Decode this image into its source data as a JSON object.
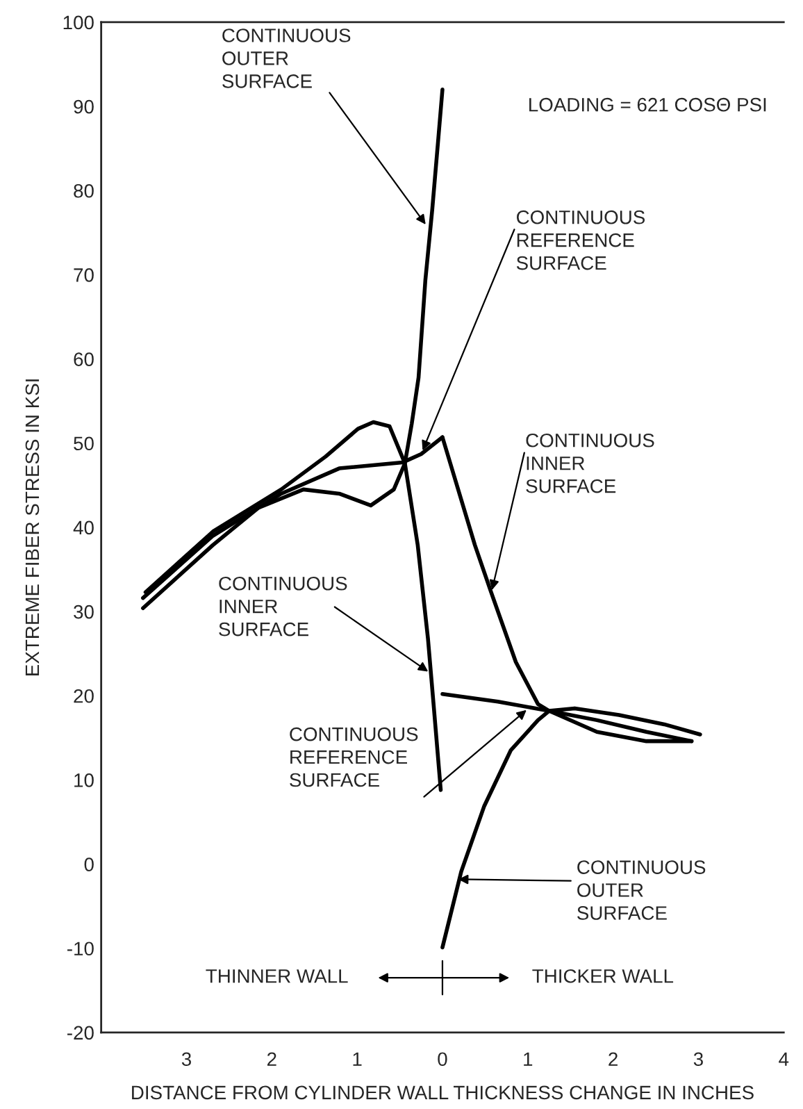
{
  "chart_data": {
    "type": "line",
    "xlabel": "DISTANCE FROM CYLINDER WALL THICKNESS CHANGE IN INCHES",
    "ylabel": "EXTREME FIBER STRESS IN KSI",
    "xlim": [
      -4,
      4
    ],
    "xticks": [
      {
        "value": -3,
        "label": "3"
      },
      {
        "value": -2,
        "label": "2"
      },
      {
        "value": -1,
        "label": "1"
      },
      0,
      1,
      2,
      3,
      4
    ],
    "ylim": [
      -20,
      100
    ],
    "yticks": [
      -20,
      -10,
      0,
      10,
      20,
      30,
      40,
      50,
      60,
      70,
      80,
      90,
      100
    ],
    "series": [
      {
        "color": "#000000",
        "x": [
          -3.48,
          -2.69,
          -1.89,
          -1.37,
          -0.99,
          -0.81,
          -0.62,
          -0.44,
          -0.29,
          -0.17,
          -0.1,
          -0.02
        ],
        "values": [
          32.3,
          39.5,
          44.5,
          48.4,
          51.7,
          52.5,
          52.0,
          47.6,
          37.9,
          26.8,
          18.5,
          8.8
        ]
      },
      {
        "color": "#000000",
        "x": [
          -3.51,
          -2.69,
          -1.89,
          -1.21,
          -0.47,
          -0.25,
          0
        ],
        "values": [
          31.6,
          39.0,
          44.0,
          47.0,
          47.7,
          48.7,
          50.7
        ]
      },
      {
        "color": "#000000",
        "x": [
          -3.51,
          -2.69,
          -2.16,
          -1.63,
          -1.21,
          -0.84,
          -0.57,
          -0.44,
          -0.36,
          -0.28,
          -0.2,
          -0.12,
          -0.05,
          0
        ],
        "values": [
          30.4,
          37.9,
          42.3,
          44.5,
          44.0,
          42.6,
          44.5,
          47.6,
          52.3,
          57.8,
          69.4,
          77.7,
          86.0,
          92
        ]
      },
      {
        "color": "#000000",
        "x": [
          0,
          0.38,
          0.57,
          0.86,
          1.12,
          1.25,
          1.81,
          2.39,
          2.92
        ],
        "values": [
          50.7,
          37.9,
          32.3,
          24.0,
          19.0,
          18.2,
          15.7,
          14.6,
          14.6
        ]
      },
      {
        "color": "#000000",
        "x": [
          0,
          0.65,
          1.25,
          1.81,
          2.39,
          2.92
        ],
        "values": [
          20.2,
          19.3,
          18.2,
          17.1,
          15.7,
          14.6
        ]
      },
      {
        "color": "#000000",
        "x": [
          0,
          0.22,
          0.49,
          0.8,
          1.12,
          1.25,
          1.55,
          2.07,
          2.6,
          3.02
        ],
        "values": [
          -9.9,
          -0.9,
          6.9,
          13.5,
          17.1,
          18.2,
          18.5,
          17.7,
          16.6,
          15.4
        ]
      }
    ],
    "annotations": [
      {
        "text": "CONTINUOUS\nOUTER\nSURFACE",
        "x": -0.17,
        "y": 75.6
      },
      {
        "text": "CONTINUOUS\nREFERENCE\nSURFACE",
        "x": -0.25,
        "y": 48.7
      },
      "LOADING = 621 COSΘ PSI",
      {
        "text": "CONTINUOUS\nINNER\nSURFACE",
        "x": 0.57,
        "y": 32.1
      },
      {
        "text": "CONTINUOUS\nINNER\nSURFACE",
        "x": -0.13,
        "y": 22.6
      },
      {
        "text": "CONTINUOUS\nREFERENCE\nSURFACE",
        "x": 1.02,
        "y": 18.6
      },
      {
        "text": "CONTINUOUS\nOUTER\nSURFACE",
        "x": 0.14,
        "y": -1.8
      },
      "THINNER WALL",
      "THICKER WALL"
    ],
    "legend": false
  }
}
